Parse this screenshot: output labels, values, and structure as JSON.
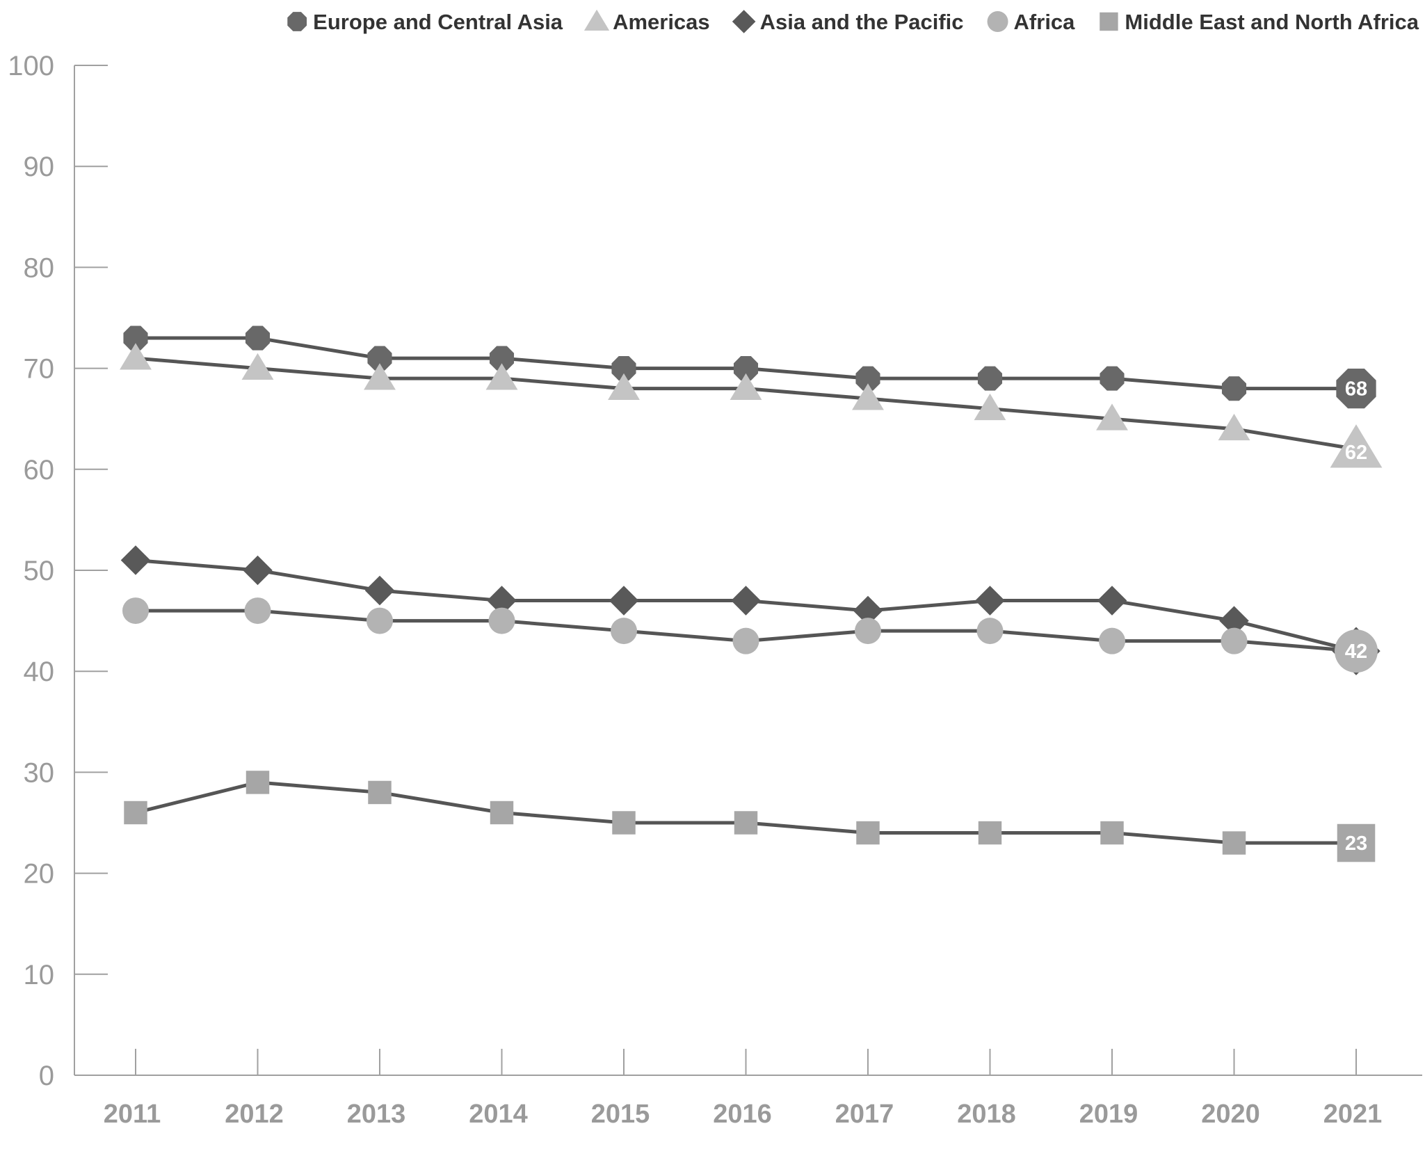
{
  "chart_data": {
    "type": "line",
    "title": "",
    "xlabel": "",
    "ylabel": "",
    "ylim": [
      0,
      100
    ],
    "yticks": [
      "0",
      "10",
      "20",
      "30",
      "40",
      "50",
      "60",
      "70",
      "80",
      "90",
      "100"
    ],
    "categories": [
      "2011",
      "2012",
      "2013",
      "2014",
      "2015",
      "2016",
      "2017",
      "2018",
      "2019",
      "2020",
      "2021"
    ],
    "legend_position": "top-right",
    "grid": false,
    "series": [
      {
        "name": "Europe and Central Asia",
        "marker": "octagon",
        "color": "#686868",
        "values": [
          73,
          73,
          71,
          71,
          70,
          70,
          69,
          69,
          69,
          68,
          68
        ],
        "end_label": "68"
      },
      {
        "name": "Americas",
        "marker": "triangle",
        "color": "#c4c4c4",
        "values": [
          71,
          70,
          69,
          69,
          68,
          68,
          67,
          66,
          65,
          64,
          62
        ],
        "end_label": "62"
      },
      {
        "name": "Asia and the Pacific",
        "marker": "diamond",
        "color": "#595959",
        "values": [
          51,
          50,
          48,
          47,
          47,
          47,
          46,
          47,
          47,
          45,
          42
        ],
        "end_label": "42"
      },
      {
        "name": "Africa",
        "marker": "circle",
        "color": "#b3b3b3",
        "values": [
          46,
          46,
          45,
          45,
          44,
          43,
          44,
          44,
          43,
          43,
          42
        ],
        "end_label": "42"
      },
      {
        "name": "Middle East and North Africa",
        "marker": "square",
        "color": "#a6a6a6",
        "values": [
          26,
          29,
          28,
          26,
          25,
          25,
          24,
          24,
          24,
          23,
          23
        ],
        "end_label": "23"
      }
    ],
    "line_color": "#555555",
    "axis_color": "#a0a0a0"
  }
}
